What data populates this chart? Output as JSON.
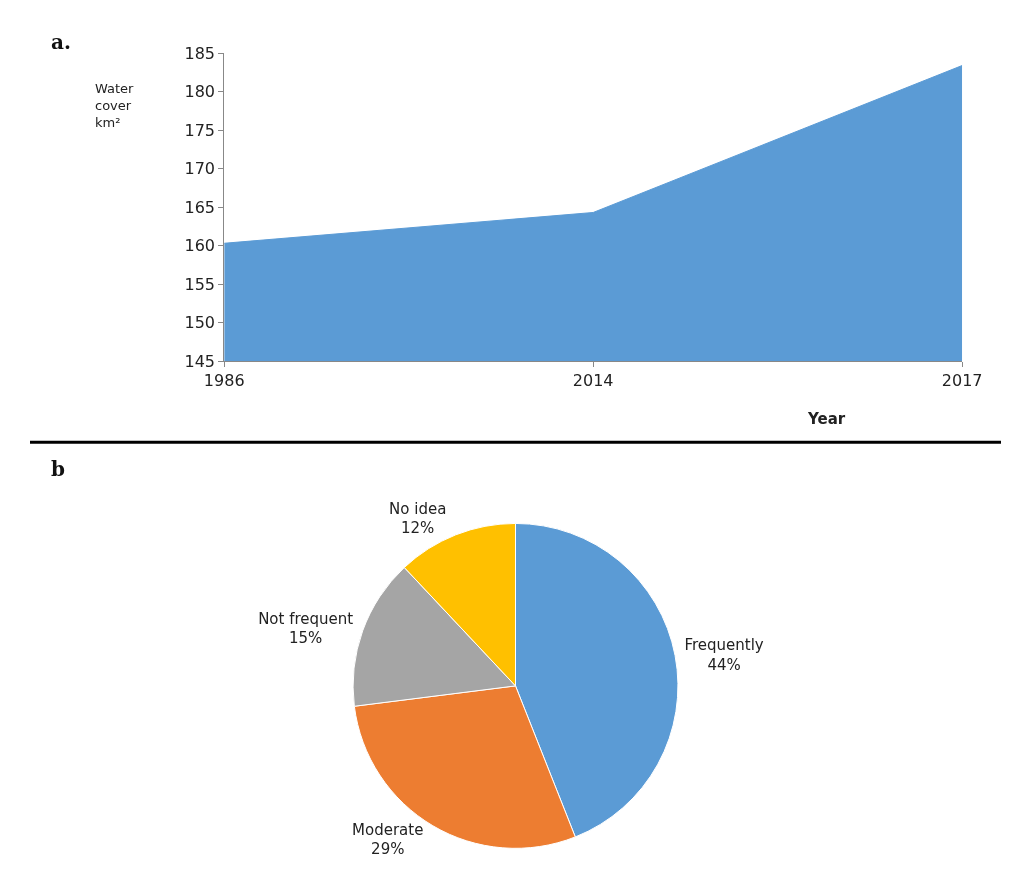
{
  "chart_data": [
    {
      "type": "area",
      "title": "a.",
      "ylabel": "Water cover km²",
      "xlabel": "Year",
      "categories": [
        "1986",
        "2014",
        "2017"
      ],
      "series": [
        {
          "color": "#5b9bd5",
          "values": [
            160.3,
            164.3,
            183.4
          ]
        }
      ],
      "ylim": [
        145,
        185
      ],
      "yticks": [
        145,
        150,
        155,
        160,
        165,
        170,
        175,
        180,
        185
      ]
    },
    {
      "type": "pie",
      "title": "b",
      "categories": [
        "Frequently",
        "Moderate",
        "Not frequent",
        "No idea"
      ],
      "values": [
        44,
        29,
        15,
        12
      ],
      "value_labels": [
        "44%",
        "29%",
        "15%",
        "12%"
      ],
      "colors": [
        "#5b9bd5",
        "#ed7d31",
        "#a5a5a5",
        "#ffc000"
      ]
    }
  ]
}
